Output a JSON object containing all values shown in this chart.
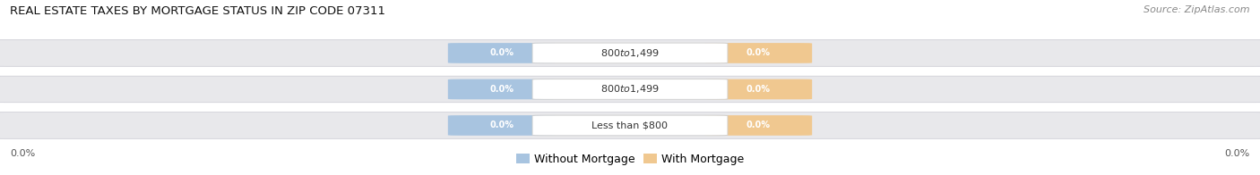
{
  "title": "REAL ESTATE TAXES BY MORTGAGE STATUS IN ZIP CODE 07311",
  "source": "Source: ZipAtlas.com",
  "categories": [
    "Less than $800",
    "$800 to $1,499",
    "$800 to $1,499"
  ],
  "without_mortgage": [
    0.0,
    0.0,
    0.0
  ],
  "with_mortgage": [
    0.0,
    0.0,
    0.0
  ],
  "bar_bg_color": "#e8e8eb",
  "bar_border_color": "#d0d0d8",
  "without_mortgage_color": "#a8c4e0",
  "with_mortgage_color": "#f0c890",
  "label_color": "#333333",
  "title_color": "#111111",
  "source_color": "#888888",
  "legend_without": "Without Mortgage",
  "legend_with": "With Mortgage",
  "x_left_label": "0.0%",
  "x_right_label": "0.0%",
  "figsize": [
    14.06,
    1.96
  ],
  "dpi": 100,
  "background_color": "#ffffff",
  "pill_label_bg": "#ffffff",
  "pill_label_border": "#cccccc",
  "pill_percent_text": "#ffffff"
}
